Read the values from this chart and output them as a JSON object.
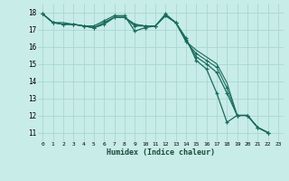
{
  "xlabel": "Humidex (Indice chaleur)",
  "bg_color": "#c8ece8",
  "grid_color": "#a8d8d0",
  "line_color": "#1a6b5a",
  "xlim": [
    -0.5,
    23.5
  ],
  "ylim": [
    10.5,
    18.5
  ],
  "xticks": [
    0,
    1,
    2,
    3,
    4,
    5,
    6,
    7,
    8,
    9,
    10,
    11,
    12,
    13,
    14,
    15,
    16,
    17,
    18,
    19,
    20,
    21,
    22,
    23
  ],
  "yticks": [
    11,
    12,
    13,
    14,
    15,
    16,
    17,
    18
  ],
  "series": [
    [
      17.9,
      17.4,
      17.3,
      17.3,
      17.2,
      17.2,
      17.5,
      17.8,
      17.8,
      16.9,
      17.1,
      17.2,
      17.9,
      17.4,
      16.5,
      15.2,
      14.7,
      13.3,
      11.6,
      12.0,
      12.0,
      11.3,
      11.0,
      null
    ],
    [
      17.9,
      17.4,
      17.3,
      17.3,
      17.2,
      17.1,
      17.4,
      17.7,
      17.7,
      17.2,
      17.2,
      17.2,
      17.8,
      17.4,
      16.4,
      15.4,
      15.0,
      14.5,
      13.3,
      12.0,
      12.0,
      11.3,
      11.0,
      null
    ],
    [
      17.9,
      17.4,
      17.3,
      17.3,
      17.2,
      17.1,
      17.3,
      17.7,
      17.7,
      17.3,
      17.2,
      17.2,
      17.8,
      17.4,
      16.3,
      15.6,
      15.2,
      14.8,
      13.6,
      12.0,
      12.0,
      11.3,
      11.0,
      null
    ],
    [
      17.9,
      17.4,
      17.4,
      17.3,
      17.2,
      17.1,
      17.3,
      17.7,
      17.7,
      17.3,
      17.2,
      17.2,
      17.8,
      17.4,
      16.3,
      15.8,
      15.4,
      15.0,
      13.9,
      12.0,
      12.0,
      11.3,
      11.0,
      null
    ]
  ]
}
